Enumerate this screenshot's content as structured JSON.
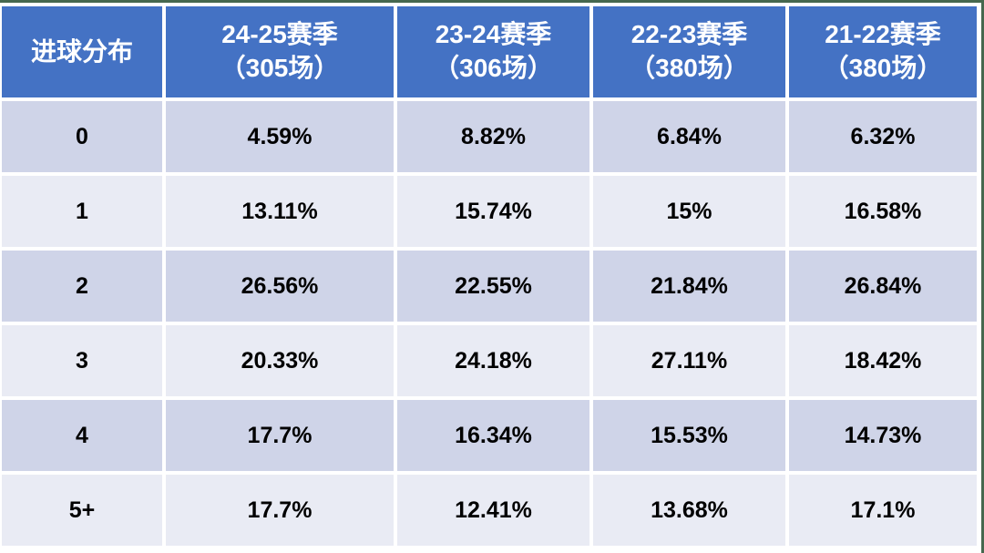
{
  "colors": {
    "header_bg": "#4472C4",
    "header_text": "#FFFFFF",
    "row_band_dark": "#CFD4E8",
    "row_band_light": "#E9EBF4",
    "cell_gap": "#FFFFFF",
    "body_text": "#000000",
    "frame_line": "#46684E"
  },
  "table": {
    "corner_label": "进球分布",
    "season_columns": [
      {
        "season": "24-25赛季",
        "matches": "（305场）"
      },
      {
        "season": "23-24赛季",
        "matches": "（306场）"
      },
      {
        "season": "22-23赛季",
        "matches": "（380场）"
      },
      {
        "season": "21-22赛季",
        "matches": "（380场）"
      }
    ],
    "rows": [
      {
        "goals": "0",
        "values": [
          "4.59%",
          "8.82%",
          "6.84%",
          "6.32%"
        ]
      },
      {
        "goals": "1",
        "values": [
          "13.11%",
          "15.74%",
          "15%",
          "16.58%"
        ]
      },
      {
        "goals": "2",
        "values": [
          "26.56%",
          "22.55%",
          "21.84%",
          "26.84%"
        ]
      },
      {
        "goals": "3",
        "values": [
          "20.33%",
          "24.18%",
          "27.11%",
          "18.42%"
        ]
      },
      {
        "goals": "4",
        "values": [
          "17.7%",
          "16.34%",
          "15.53%",
          "14.73%"
        ]
      },
      {
        "goals": "5+",
        "values": [
          "17.7%",
          "12.41%",
          "13.68%",
          "17.1%"
        ]
      }
    ]
  },
  "chart_data": {
    "type": "table",
    "columns": [
      "进球分布",
      "24-25赛季（305场）",
      "23-24赛季（306场）",
      "22-23赛季（380场）",
      "21-22赛季（380场）"
    ],
    "rows": [
      [
        "0",
        "4.59%",
        "8.82%",
        "6.84%",
        "6.32%"
      ],
      [
        "1",
        "13.11%",
        "15.74%",
        "15%",
        "16.58%"
      ],
      [
        "2",
        "26.56%",
        "22.55%",
        "21.84%",
        "26.84%"
      ],
      [
        "3",
        "20.33%",
        "24.18%",
        "27.11%",
        "18.42%"
      ],
      [
        "4",
        "17.7%",
        "16.34%",
        "15.53%",
        "14.73%"
      ],
      [
        "5+",
        "17.7%",
        "12.41%",
        "13.68%",
        "17.1%"
      ]
    ]
  }
}
